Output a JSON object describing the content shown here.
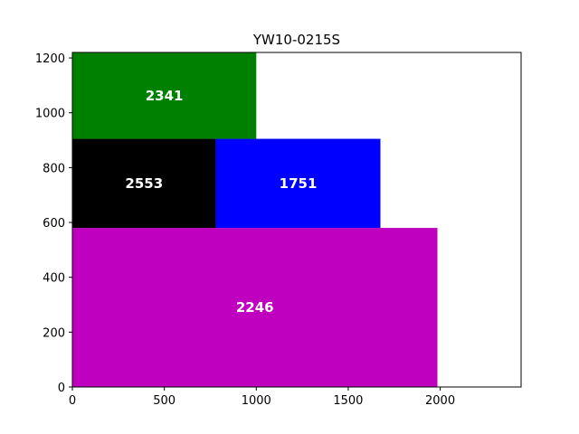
{
  "chart_data": {
    "type": "rectangle-packing",
    "title": "YW10-0215S",
    "xlabel": "",
    "ylabel": "",
    "xlim": [
      0,
      2440
    ],
    "ylim": [
      0,
      1220
    ],
    "xticks": [
      0,
      500,
      1000,
      1500,
      2000
    ],
    "yticks": [
      0,
      200,
      400,
      600,
      800,
      1000,
      1200
    ],
    "grid": false,
    "rectangles": [
      {
        "label": "2246",
        "x": 0,
        "y": 0,
        "width": 1985,
        "height": 580,
        "color": "#bf00bf"
      },
      {
        "label": "2553",
        "x": 0,
        "y": 580,
        "width": 780,
        "height": 325,
        "color": "#000000"
      },
      {
        "label": "1751",
        "x": 780,
        "y": 580,
        "width": 895,
        "height": 325,
        "color": "#0000ff"
      },
      {
        "label": "2341",
        "x": 0,
        "y": 905,
        "width": 1000,
        "height": 315,
        "color": "#008000"
      }
    ]
  }
}
